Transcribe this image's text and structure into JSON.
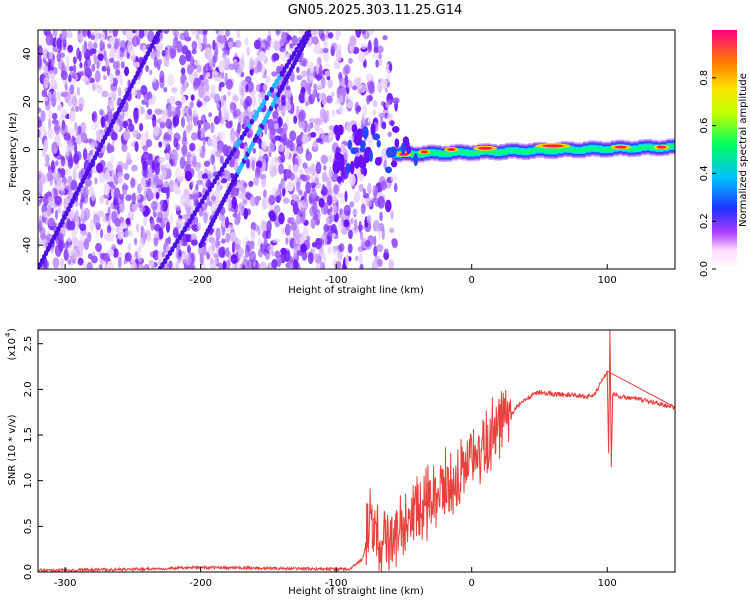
{
  "title": "GN05.2025.303.11.25.G14",
  "chart_data": [
    {
      "type": "heatmap",
      "xlabel": "Height of straight line (km)",
      "ylabel": "Frequency (Hz)",
      "xlim": [
        -320,
        150
      ],
      "ylim": [
        -50,
        50
      ],
      "xticks": [
        -300,
        -200,
        -100,
        0,
        100
      ],
      "yticks": [
        -40,
        -20,
        0,
        20,
        40
      ],
      "colorbar": {
        "label": "Normalized spectral amplitude",
        "range": [
          0.0,
          1.0
        ],
        "ticks": [
          0.0,
          0.2,
          0.4,
          0.6,
          0.8
        ],
        "tick_labels": [
          "0.0",
          "0.2",
          "0.4",
          "0.6",
          "0.8"
        ]
      },
      "features": {
        "noise_region_x": [
          -320,
          -55
        ],
        "signal_line": {
          "x": [
            -55,
            150
          ],
          "freq_hz": [
            -2,
            1
          ],
          "peak_amplitude": 1.0
        },
        "diagonal_tracks": [
          {
            "x": [
              -320,
              -230
            ],
            "freq_hz": [
              -50,
              50
            ]
          },
          {
            "x": [
              -200,
              -120
            ],
            "freq_hz": [
              -40,
              48
            ]
          },
          {
            "x": [
              -230,
              -120
            ],
            "freq_hz": [
              -50,
              50
            ]
          }
        ]
      }
    },
    {
      "type": "line",
      "xlabel": "Height of straight line (km)",
      "ylabel": "SNR (10 * v/v)",
      "ylabel_scale": "(x10",
      "ylabel_exp": "4",
      "xlim": [
        -320,
        150
      ],
      "ylim": [
        0,
        2.65
      ],
      "xticks": [
        -300,
        -200,
        -100,
        0,
        100
      ],
      "yticks": [
        0.0,
        0.5,
        1.0,
        1.5,
        2.0,
        2.5
      ],
      "ytick_labels": [
        "0.0",
        "0.5",
        "1.0",
        "1.5",
        "2.0",
        "2.5"
      ],
      "series": [
        {
          "name": "SNR",
          "color": "#e8403c",
          "x": [
            -320,
            -250,
            -200,
            -150,
            -90,
            -80,
            -75,
            -70,
            -60,
            -50,
            -40,
            -30,
            -20,
            -10,
            0,
            10,
            20,
            30,
            40,
            50,
            60,
            70,
            80,
            90,
            100,
            101,
            102,
            103,
            104,
            110,
            120,
            130,
            140,
            150
          ],
          "y": [
            0.02,
            0.03,
            0.05,
            0.04,
            0.03,
            0.15,
            0.6,
            0.4,
            0.3,
            0.6,
            0.7,
            0.8,
            0.95,
            1.05,
            1.2,
            1.4,
            1.6,
            1.75,
            1.9,
            1.97,
            1.95,
            1.94,
            1.93,
            1.92,
            2.2,
            1.3,
            2.65,
            1.15,
            1.95,
            1.92,
            1.9,
            1.87,
            1.84,
            1.8
          ]
        }
      ]
    }
  ]
}
